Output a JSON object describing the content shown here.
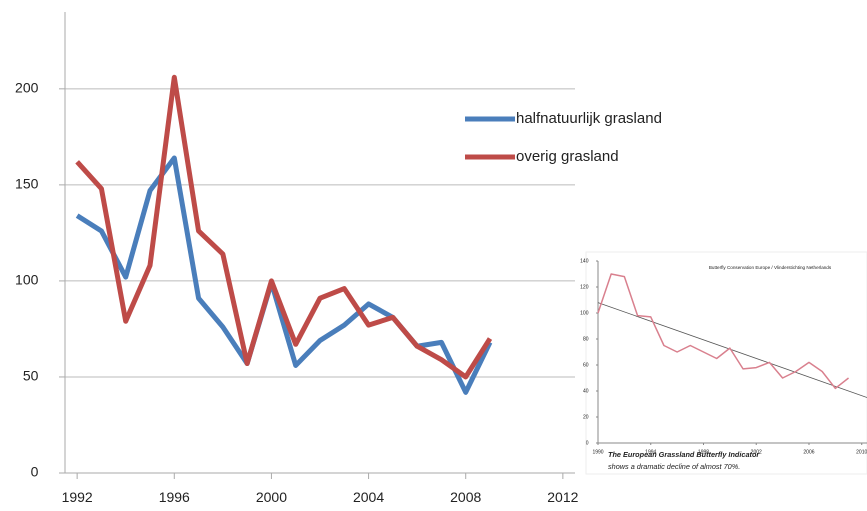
{
  "chart_data": [
    {
      "type": "line",
      "x": [
        1992,
        1993,
        1994,
        1995,
        1996,
        1997,
        1998,
        1999,
        2000,
        2001,
        2002,
        2003,
        2004,
        2005,
        2006,
        2007,
        2008,
        2009
      ],
      "series": [
        {
          "name": "halfnatuurlijk grasland",
          "color": "#4a7ebb",
          "values": [
            134,
            126,
            102,
            147,
            164,
            91,
            76,
            57,
            99,
            56,
            69,
            77,
            88,
            81,
            66,
            68,
            42,
            68
          ]
        },
        {
          "name": "overig grasland",
          "color": "#be4b48",
          "values": [
            162,
            148,
            79,
            108,
            206,
            126,
            114,
            57,
            100,
            67,
            91,
            96,
            77,
            81,
            66,
            59,
            50,
            70
          ]
        }
      ],
      "xlim": [
        1991.5,
        2012.5
      ],
      "xticks": [
        1992,
        1996,
        2000,
        2004,
        2008,
        2012
      ],
      "ylim": [
        0,
        240
      ],
      "yticks": [
        0,
        50,
        100,
        150,
        200
      ],
      "grid": true,
      "legend": "right"
    },
    {
      "type": "line",
      "subtitle": "Butterfly Conservation Europe / Vlinderstichting Netherlands",
      "caption": "The European Grassland Butterfly Indicator",
      "caption2": "shows a  dramatic decline of almost 70%.",
      "x": [
        1990,
        1991,
        1992,
        1993,
        1994,
        1995,
        1996,
        1997,
        1998,
        1999,
        2000,
        2001,
        2002,
        2003,
        2004,
        2005,
        2006,
        2007,
        2008,
        2009
      ],
      "series": [
        {
          "color": "#d9808e",
          "values": [
            100,
            130,
            128,
            98,
            97,
            75,
            70,
            75,
            70,
            65,
            73,
            57,
            58,
            62,
            50,
            55,
            62,
            55,
            42,
            50
          ]
        }
      ],
      "trend": [
        108,
        35
      ],
      "trend_color": "#555555",
      "xlim": [
        1990,
        2010.4
      ],
      "xticks": [
        1990,
        1994,
        1998,
        2002,
        2006,
        2010
      ],
      "ylim": [
        0,
        140
      ],
      "yticks": [
        0,
        20,
        40,
        60,
        80,
        100,
        120,
        140
      ],
      "grid": false
    }
  ]
}
